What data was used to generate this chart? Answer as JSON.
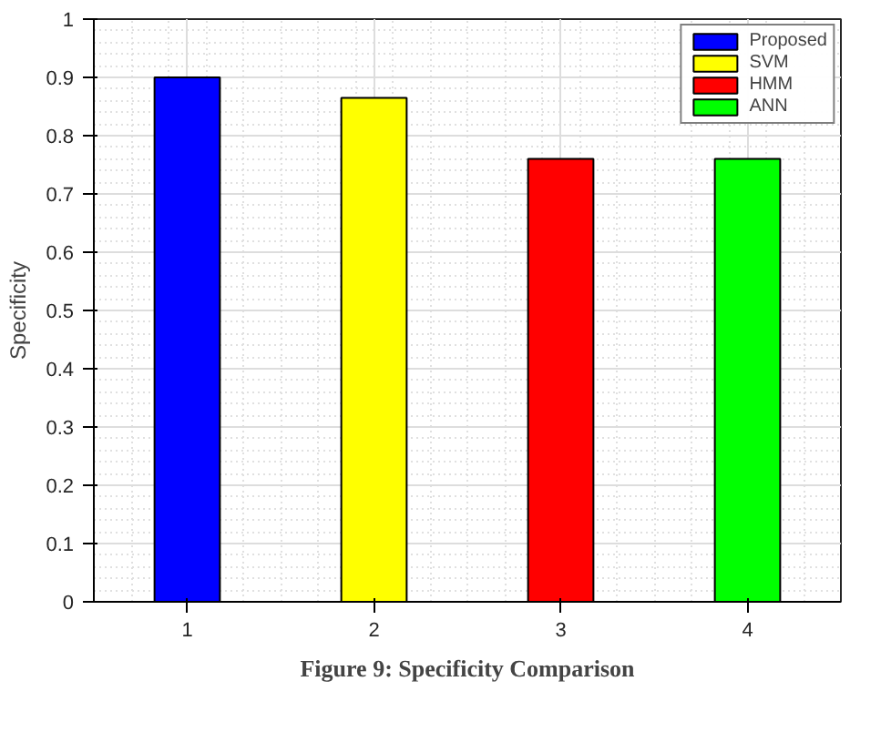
{
  "chart_data": {
    "type": "bar",
    "title": "Figure 9: Specificity Comparison",
    "ylabel": "Specificity",
    "series": [
      {
        "name": "Proposed",
        "color": "#0000ff",
        "x": [
          1
        ],
        "values": [
          0.9
        ]
      },
      {
        "name": "SVM",
        "color": "#ffff00",
        "x": [
          2
        ],
        "values": [
          0.865
        ]
      },
      {
        "name": "HMM",
        "color": "#ff0000",
        "x": [
          3
        ],
        "values": [
          0.76
        ]
      },
      {
        "name": "ANN",
        "color": "#00ff00",
        "x": [
          4
        ],
        "values": [
          0.76
        ]
      }
    ],
    "xlim": [
      0.5,
      4.5
    ],
    "xticks": [
      1,
      2,
      3,
      4
    ],
    "ylim": [
      0,
      1
    ],
    "yticks": [
      0,
      0.1,
      0.2,
      0.3,
      0.4,
      0.5,
      0.6,
      0.7,
      0.8,
      0.9,
      1
    ],
    "grid": true,
    "legend": "top right"
  }
}
